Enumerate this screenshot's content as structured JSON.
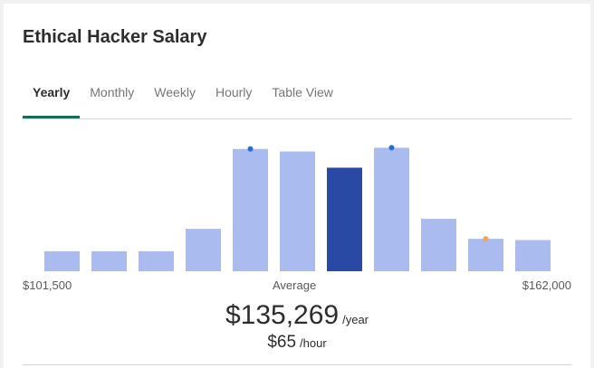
{
  "title": "Ethical Hacker Salary",
  "tabs": [
    {
      "label": "Yearly",
      "active": true
    },
    {
      "label": "Monthly",
      "active": false
    },
    {
      "label": "Weekly",
      "active": false
    },
    {
      "label": "Hourly",
      "active": false
    },
    {
      "label": "Table View",
      "active": false
    }
  ],
  "range": {
    "min_label": "$101,500",
    "max_label": "$162,000",
    "avg_label": "Average"
  },
  "salary": {
    "yearly": "$135,269",
    "yearly_unit": "/year",
    "hourly": "$65",
    "hourly_unit": "/hour"
  },
  "colors": {
    "bar": "#aabbf0",
    "highlight": "#2a49a4",
    "blue_marker": "#1f6fdc",
    "orange_marker": "#f5a25d",
    "tab_underline": "#1c6b5a"
  },
  "chart_data": {
    "type": "bar",
    "values": [
      0.16,
      0.16,
      0.16,
      0.34,
      0.98,
      0.96,
      0.83,
      0.99,
      0.42,
      0.26,
      0.25
    ],
    "highlight_index": 6,
    "markers": [
      {
        "index": 4,
        "color": "blue"
      },
      {
        "index": 7,
        "color": "blue"
      },
      {
        "index": 9,
        "color": "orange"
      }
    ]
  }
}
